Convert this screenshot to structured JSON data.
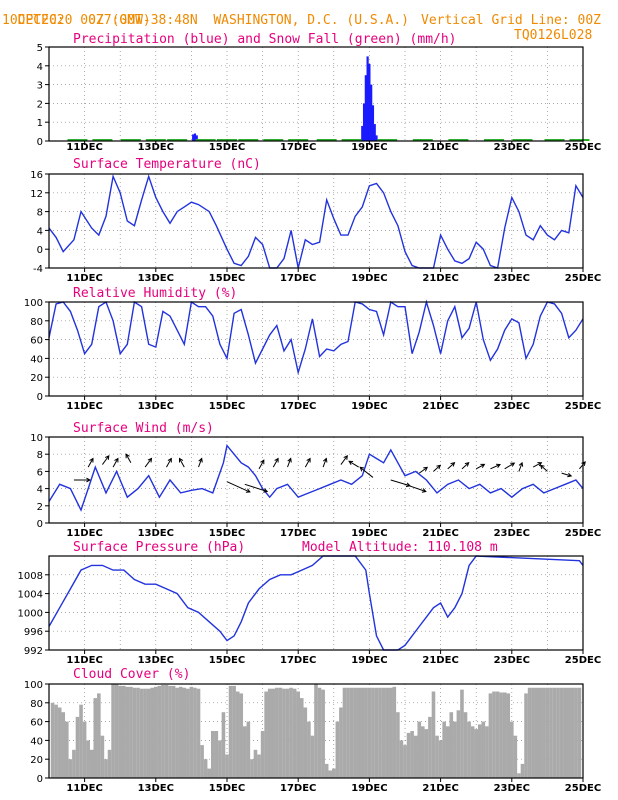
{
  "header": {
    "line1_left": "CPTEC:",
    "line1_coords": "077:00W-38:48N",
    "line1_place": "WASHINGTON, D.C. (U.S.A.)",
    "line2_left": "10DEC2020 00Z (GMT)",
    "line2_right": "Vertical Grid Line: 00Z",
    "code": "TQ0126L028"
  },
  "colors": {
    "header": "#f08a00",
    "panel_title": "#e6007e",
    "line": "#2233dd",
    "precip": "#1a1aff",
    "snow": "#22aa22",
    "cloud": "#aaaaaa",
    "grid": "#888888"
  },
  "x_axis": {
    "day_start": 10,
    "day_end": 25,
    "tick_days": [
      11,
      13,
      15,
      17,
      19,
      21,
      23,
      25
    ],
    "tick_labels": [
      "11DEC",
      "13DEC",
      "15DEC",
      "17DEC",
      "19DEC",
      "21DEC",
      "23DEC",
      "25DEC"
    ]
  },
  "chart_data": [
    {
      "type": "bar",
      "title": "Precipitation (blue) and Snow Fall (green) (mm/h)",
      "ylim": [
        0,
        5
      ],
      "yticks": [
        0,
        1,
        2,
        3,
        4,
        5
      ],
      "series": [
        {
          "name": "Precipitation",
          "color": "#1a1aff",
          "x": [
            14.05,
            14.1,
            14.15,
            18.8,
            18.85,
            18.9,
            18.95,
            19.0,
            19.05,
            19.1,
            19.15,
            19.2
          ],
          "values": [
            0.35,
            0.4,
            0.3,
            0.8,
            2.0,
            3.5,
            4.5,
            4.1,
            3.0,
            1.9,
            0.9,
            0.3
          ]
        },
        {
          "name": "Snow Fall",
          "color": "#22aa22",
          "x": [
            10.8,
            11.5,
            12.3,
            13.0,
            13.6,
            14.4,
            15.0,
            15.6,
            16.3,
            17.0,
            17.8,
            18.5,
            19.5,
            20.5,
            21.5,
            22.5,
            23.3,
            24.2,
            24.9
          ],
          "values": [
            0.05,
            0.05,
            0.05,
            0.05,
            0.05,
            0.05,
            0.05,
            0.05,
            0.05,
            0.05,
            0.05,
            0.05,
            0.05,
            0.05,
            0.05,
            0.05,
            0.05,
            0.05,
            0.05
          ]
        }
      ]
    },
    {
      "type": "line",
      "title": "Surface Temperature (nC)",
      "ylim": [
        -4,
        16
      ],
      "yticks": [
        -4,
        0,
        4,
        8,
        12,
        16
      ],
      "x": [
        10.0,
        10.2,
        10.4,
        10.7,
        10.9,
        11.2,
        11.4,
        11.6,
        11.8,
        12.0,
        12.2,
        12.4,
        12.6,
        12.8,
        13.0,
        13.2,
        13.4,
        13.6,
        13.8,
        14.0,
        14.2,
        14.5,
        14.7,
        15.0,
        15.2,
        15.4,
        15.6,
        15.8,
        16.0,
        16.2,
        16.4,
        16.6,
        16.8,
        17.0,
        17.2,
        17.4,
        17.6,
        17.8,
        18.0,
        18.2,
        18.4,
        18.6,
        18.8,
        19.0,
        19.2,
        19.4,
        19.6,
        19.8,
        20.0,
        20.2,
        20.4,
        20.6,
        20.8,
        21.0,
        21.2,
        21.4,
        21.6,
        21.8,
        22.0,
        22.2,
        22.4,
        22.6,
        22.8,
        23.0,
        23.2,
        23.4,
        23.6,
        23.8,
        24.0,
        24.2,
        24.4,
        24.6,
        24.8,
        25.0
      ],
      "values": [
        4.5,
        2.5,
        -0.5,
        2.0,
        8.0,
        4.5,
        3.0,
        7.0,
        15.5,
        12.0,
        6.0,
        5.0,
        10.5,
        15.5,
        11.0,
        8.0,
        5.5,
        8.0,
        9.0,
        10.0,
        9.5,
        8.0,
        5.0,
        0.0,
        -3.0,
        -3.5,
        -1.5,
        2.5,
        1.0,
        -4.0,
        -4.5,
        -2.0,
        4.0,
        -4.0,
        2.0,
        1.0,
        1.5,
        10.5,
        6.5,
        3.0,
        3.0,
        7.0,
        9.0,
        13.5,
        14.0,
        12.0,
        8.0,
        5.0,
        -0.5,
        -3.5,
        -4.5,
        -4.5,
        -4.0,
        3.0,
        0.0,
        -2.5,
        -3.0,
        -2.0,
        1.5,
        0.0,
        -3.5,
        -4.0,
        4.5,
        11.0,
        8.0,
        3.0,
        2.0,
        5.0,
        3.0,
        2.0,
        4.0,
        3.5,
        13.5,
        11.0
      ]
    },
    {
      "type": "line",
      "title": "Relative Humidity (%)",
      "ylim": [
        0,
        100
      ],
      "yticks": [
        0,
        20,
        40,
        60,
        80,
        100
      ],
      "x": [
        10.0,
        10.2,
        10.4,
        10.6,
        10.8,
        11.0,
        11.2,
        11.4,
        11.6,
        11.8,
        12.0,
        12.2,
        12.4,
        12.6,
        12.8,
        13.0,
        13.2,
        13.4,
        13.6,
        13.8,
        14.0,
        14.2,
        14.4,
        14.6,
        14.8,
        15.0,
        15.2,
        15.4,
        15.6,
        15.8,
        16.0,
        16.2,
        16.4,
        16.6,
        16.8,
        17.0,
        17.2,
        17.4,
        17.6,
        17.8,
        18.0,
        18.2,
        18.4,
        18.6,
        18.8,
        19.0,
        19.2,
        19.4,
        19.6,
        19.8,
        20.0,
        20.2,
        20.4,
        20.6,
        20.8,
        21.0,
        21.2,
        21.4,
        21.6,
        21.8,
        22.0,
        22.2,
        22.4,
        22.6,
        22.8,
        23.0,
        23.2,
        23.4,
        23.6,
        23.8,
        24.0,
        24.2,
        24.4,
        24.6,
        24.8,
        25.0
      ],
      "values": [
        62,
        98,
        100,
        90,
        70,
        45,
        55,
        95,
        100,
        80,
        45,
        55,
        100,
        95,
        55,
        52,
        90,
        85,
        70,
        55,
        100,
        95,
        95,
        85,
        55,
        40,
        88,
        92,
        65,
        35,
        50,
        65,
        75,
        48,
        60,
        25,
        50,
        82,
        42,
        50,
        48,
        55,
        58,
        100,
        98,
        92,
        90,
        65,
        100,
        95,
        95,
        45,
        68,
        100,
        75,
        45,
        80,
        95,
        62,
        72,
        100,
        60,
        38,
        50,
        70,
        82,
        78,
        40,
        55,
        85,
        100,
        98,
        88,
        62,
        70,
        82
      ]
    },
    {
      "type": "line",
      "title": "Surface Wind (m/s)",
      "ylim": [
        0,
        10
      ],
      "yticks": [
        0,
        2,
        4,
        6,
        8,
        10
      ],
      "x": [
        10.0,
        10.3,
        10.6,
        10.9,
        11.1,
        11.3,
        11.6,
        11.9,
        12.2,
        12.5,
        12.8,
        13.1,
        13.4,
        13.7,
        14.0,
        14.3,
        14.6,
        14.9,
        15.0,
        15.2,
        15.4,
        15.6,
        15.8,
        16.0,
        16.2,
        16.4,
        16.7,
        17.0,
        17.3,
        17.6,
        17.9,
        18.2,
        18.5,
        18.8,
        19.0,
        19.2,
        19.4,
        19.6,
        19.8,
        20.0,
        20.3,
        20.6,
        20.9,
        21.2,
        21.5,
        21.8,
        22.1,
        22.4,
        22.7,
        23.0,
        23.3,
        23.6,
        23.9,
        24.2,
        24.5,
        24.8,
        25.0
      ],
      "values": [
        2.5,
        4.5,
        4.0,
        1.5,
        4.0,
        6.5,
        3.5,
        6.0,
        3.0,
        4.0,
        5.5,
        3.0,
        5.0,
        3.5,
        3.8,
        4.0,
        3.5,
        7.0,
        9.0,
        8.0,
        7.0,
        6.5,
        5.5,
        4.0,
        3.0,
        4.0,
        4.5,
        3.0,
        3.5,
        4.0,
        4.5,
        5.0,
        4.5,
        5.5,
        8.0,
        7.5,
        7.0,
        8.5,
        7.0,
        5.5,
        6.0,
        5.0,
        3.5,
        4.5,
        5.0,
        4.0,
        4.5,
        3.5,
        4.0,
        3.0,
        4.0,
        4.5,
        3.5,
        4.0,
        4.5,
        5.0,
        4.0
      ]
    },
    {
      "type": "line",
      "title": "Surface Pressure (hPa)",
      "ylim": [
        992,
        1012
      ],
      "yticks": [
        992,
        996,
        1000,
        1004,
        1008
      ],
      "x": [
        10.0,
        10.3,
        10.6,
        10.9,
        11.2,
        11.5,
        11.8,
        12.1,
        12.4,
        12.7,
        13.0,
        13.3,
        13.6,
        13.9,
        14.2,
        14.5,
        14.8,
        15.0,
        15.2,
        15.4,
        15.6,
        15.9,
        16.2,
        16.5,
        16.8,
        17.1,
        17.4,
        17.7,
        18.0,
        18.3,
        18.6,
        18.9,
        19.0,
        19.2,
        19.4,
        19.6,
        19.8,
        20.0,
        20.2,
        20.4,
        20.6,
        20.8,
        21.0,
        21.2,
        21.4,
        21.6,
        21.8,
        22.0,
        24.9,
        25.0
      ],
      "values": [
        997,
        1001,
        1005,
        1009,
        1010,
        1010,
        1009,
        1009,
        1007,
        1006,
        1006,
        1005,
        1004,
        1001,
        1000,
        998,
        996,
        994,
        995,
        998,
        1002,
        1005,
        1007,
        1008,
        1008,
        1009,
        1010,
        1012,
        1013,
        1013,
        1012,
        1009,
        1004,
        995,
        991,
        990,
        990,
        993,
        995,
        997,
        999,
        1001,
        1002,
        999,
        1001,
        1004,
        1010,
        1013,
        1011,
        1010
      ]
    },
    {
      "type": "bar",
      "title": "Cloud Cover (%)",
      "ylim": [
        0,
        100
      ],
      "yticks": [
        0,
        20,
        40,
        60,
        80,
        100
      ],
      "x": [
        10.1,
        10.2,
        10.3,
        10.4,
        10.5,
        10.6,
        10.7,
        10.8,
        10.9,
        11.0,
        11.1,
        11.2,
        11.3,
        11.4,
        11.5,
        11.6,
        11.7,
        11.8,
        11.9,
        12.0,
        12.1,
        12.2,
        12.3,
        12.4,
        12.5,
        12.6,
        12.7,
        12.8,
        12.9,
        13.0,
        13.1,
        13.2,
        13.3,
        13.4,
        13.5,
        13.6,
        13.7,
        13.8,
        13.9,
        14.0,
        14.1,
        14.2,
        14.3,
        14.4,
        14.5,
        14.6,
        14.7,
        14.8,
        14.9,
        15.0,
        15.1,
        15.2,
        15.3,
        15.4,
        15.5,
        15.6,
        15.7,
        15.8,
        15.9,
        16.0,
        16.1,
        16.2,
        16.3,
        16.4,
        16.5,
        16.6,
        16.7,
        16.8,
        16.9,
        17.0,
        17.1,
        17.2,
        17.3,
        17.4,
        17.5,
        17.6,
        17.7,
        17.8,
        17.9,
        18.0,
        18.1,
        18.2,
        18.3,
        18.4,
        18.5,
        18.6,
        18.7,
        18.8,
        18.9,
        19.0,
        19.1,
        19.2,
        19.3,
        19.4,
        19.5,
        19.6,
        19.7,
        19.8,
        19.9,
        20.0,
        20.1,
        20.2,
        20.3,
        20.4,
        20.5,
        20.6,
        20.7,
        20.8,
        20.9,
        21.0,
        21.1,
        21.2,
        21.3,
        21.4,
        21.5,
        21.6,
        21.7,
        21.8,
        21.9,
        22.0,
        22.1,
        22.2,
        22.3,
        22.4,
        22.5,
        22.6,
        22.7,
        22.8,
        22.9,
        23.0,
        23.1,
        23.2,
        23.3,
        23.4,
        23.5,
        23.6,
        23.7,
        23.8,
        23.9,
        24.0,
        24.1,
        24.2,
        24.3,
        24.4,
        24.5,
        24.6,
        24.7,
        24.8,
        24.9
      ],
      "values": [
        80,
        78,
        75,
        70,
        60,
        20,
        30,
        65,
        78,
        60,
        40,
        30,
        85,
        90,
        45,
        20,
        30,
        100,
        100,
        98,
        98,
        97,
        97,
        96,
        96,
        95,
        95,
        95,
        96,
        97,
        98,
        99,
        99,
        98,
        98,
        96,
        97,
        96,
        95,
        97,
        96,
        95,
        35,
        20,
        10,
        50,
        50,
        40,
        70,
        25,
        98,
        98,
        92,
        90,
        55,
        60,
        20,
        30,
        25,
        50,
        92,
        95,
        95,
        96,
        96,
        95,
        95,
        96,
        95,
        92,
        85,
        75,
        60,
        45,
        100,
        96,
        94,
        15,
        8,
        10,
        60,
        75,
        96,
        96,
        96,
        96,
        96,
        96,
        96,
        96,
        96,
        96,
        96,
        96,
        96,
        96,
        97,
        70,
        40,
        35,
        48,
        50,
        45,
        60,
        55,
        52,
        65,
        92,
        45,
        40,
        60,
        55,
        70,
        60,
        72,
        94,
        70,
        60,
        55,
        52,
        57,
        60,
        55,
        90,
        92,
        92,
        91,
        91,
        90,
        60,
        45,
        5,
        15,
        90,
        96,
        96,
        96,
        96,
        96,
        96,
        96,
        96,
        96,
        96,
        96,
        96,
        96,
        96,
        96
      ]
    }
  ],
  "panel_titles": {
    "precip": "Precipitation (blue) and Snow Fall (green) (mm/h)",
    "temp": "Surface Temperature (nC)",
    "rh": "Relative Humidity (%)",
    "wind": "Surface Wind (m/s)",
    "pressure": "Surface Pressure (hPa)",
    "model_altitude": "Model Altitude: 110.108 m",
    "cloud": "Cloud Cover (%)"
  },
  "wind_arrows": {
    "note_units": "dx, dy in m/s direction vectors",
    "x": [
      10.7,
      11.1,
      11.5,
      11.8,
      12.3,
      12.7,
      13.3,
      13.8,
      14.2,
      15.0,
      15.5,
      15.9,
      16.3,
      16.7,
      17.2,
      17.7,
      18.2,
      18.7,
      19.1,
      19.6,
      20.0,
      20.4,
      20.8,
      21.2,
      21.6,
      22.0,
      22.4,
      22.8,
      23.2,
      23.6,
      24.0,
      24.4,
      24.9
    ],
    "y": [
      5.0,
      6.5,
      6.8,
      6.5,
      7.0,
      6.5,
      6.5,
      6.5,
      6.5,
      4.8,
      4.5,
      6.3,
      6.5,
      6.5,
      6.5,
      6.5,
      6.8,
      6.5,
      5.3,
      5.0,
      4.5,
      5.8,
      6.0,
      6.3,
      6.3,
      6.3,
      6.3,
      6.3,
      6.0,
      6.5,
      6.0,
      5.8,
      6.3
    ],
    "dx": [
      1,
      0.3,
      0.4,
      0.3,
      -0.3,
      0.4,
      0.3,
      -0.3,
      0.2,
      1.6,
      1.4,
      0.3,
      0.3,
      0.2,
      0.3,
      0.2,
      0.4,
      -0.6,
      -0.8,
      1.2,
      1.3,
      0.5,
      0.4,
      0.4,
      0.4,
      0.5,
      0.6,
      0.6,
      0.2,
      0.5,
      -0.4,
      0.6,
      0.3
    ],
    "dy": [
      0,
      0.6,
      0.6,
      0.6,
      0.6,
      0.6,
      0.6,
      0.6,
      0.6,
      -0.8,
      -0.5,
      0.6,
      0.6,
      0.6,
      0.6,
      0.6,
      0.6,
      0.4,
      0.7,
      -0.4,
      -0.5,
      0.4,
      0.4,
      0.4,
      0.4,
      0.3,
      0.3,
      0.4,
      0.6,
      0.3,
      0.4,
      -0.2,
      0.4
    ]
  }
}
